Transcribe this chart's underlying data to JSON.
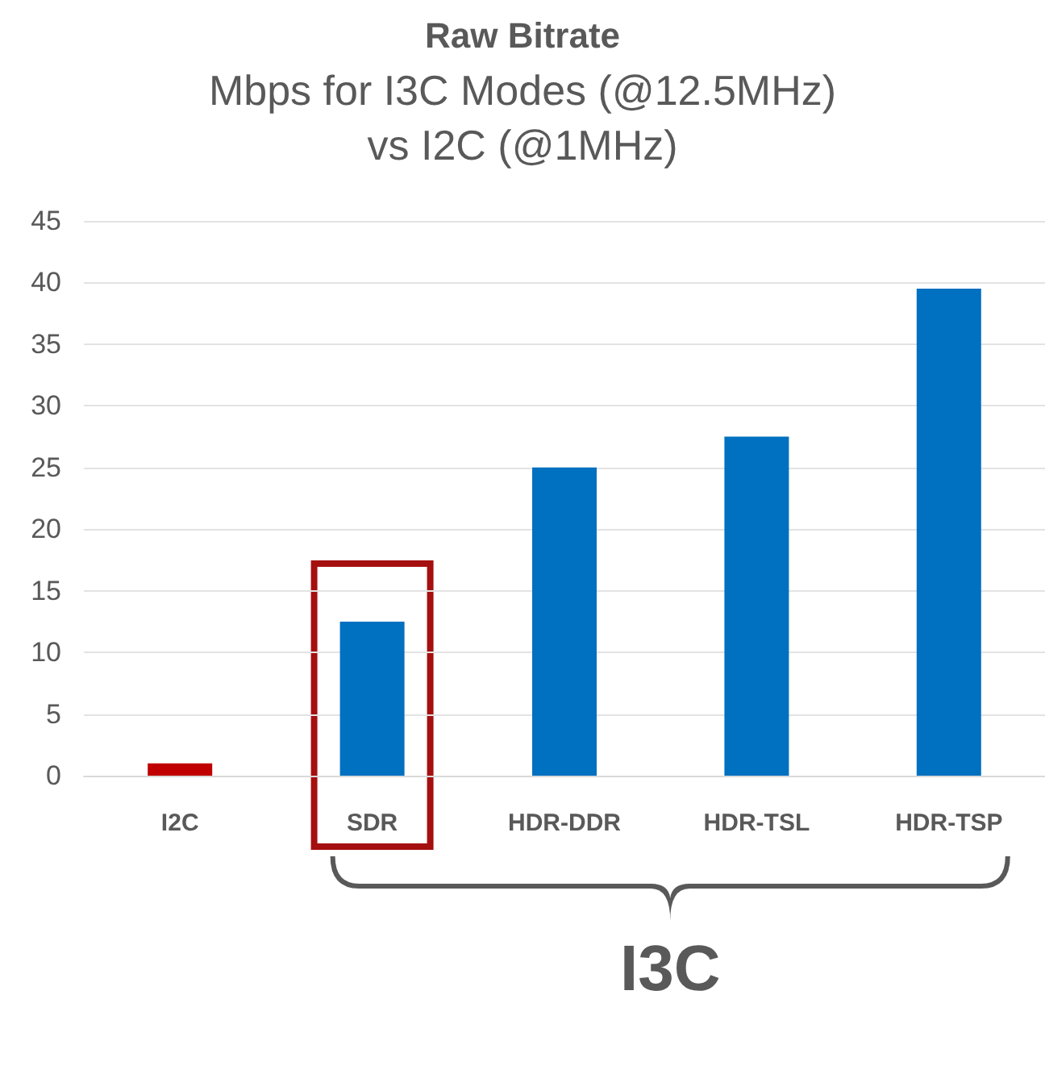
{
  "chart_data": {
    "type": "bar",
    "title": "Raw Bitrate",
    "subtitle": "Mbps for I3C Modes (@12.5MHz)\nvs I2C (@1MHz)",
    "categories": [
      "I2C",
      "SDR",
      "HDR-DDR",
      "HDR-TSL",
      "HDR-TSP"
    ],
    "values": [
      1,
      12.5,
      25,
      27.5,
      39.5
    ],
    "colors": [
      "#c00000",
      "#0070c0",
      "#0070c0",
      "#0070c0",
      "#0070c0"
    ],
    "ylim": [
      0,
      45
    ],
    "yticks": [
      0,
      5,
      10,
      15,
      20,
      25,
      30,
      35,
      40,
      45
    ],
    "grid": "y",
    "annotations": [
      "I3C"
    ]
  }
}
